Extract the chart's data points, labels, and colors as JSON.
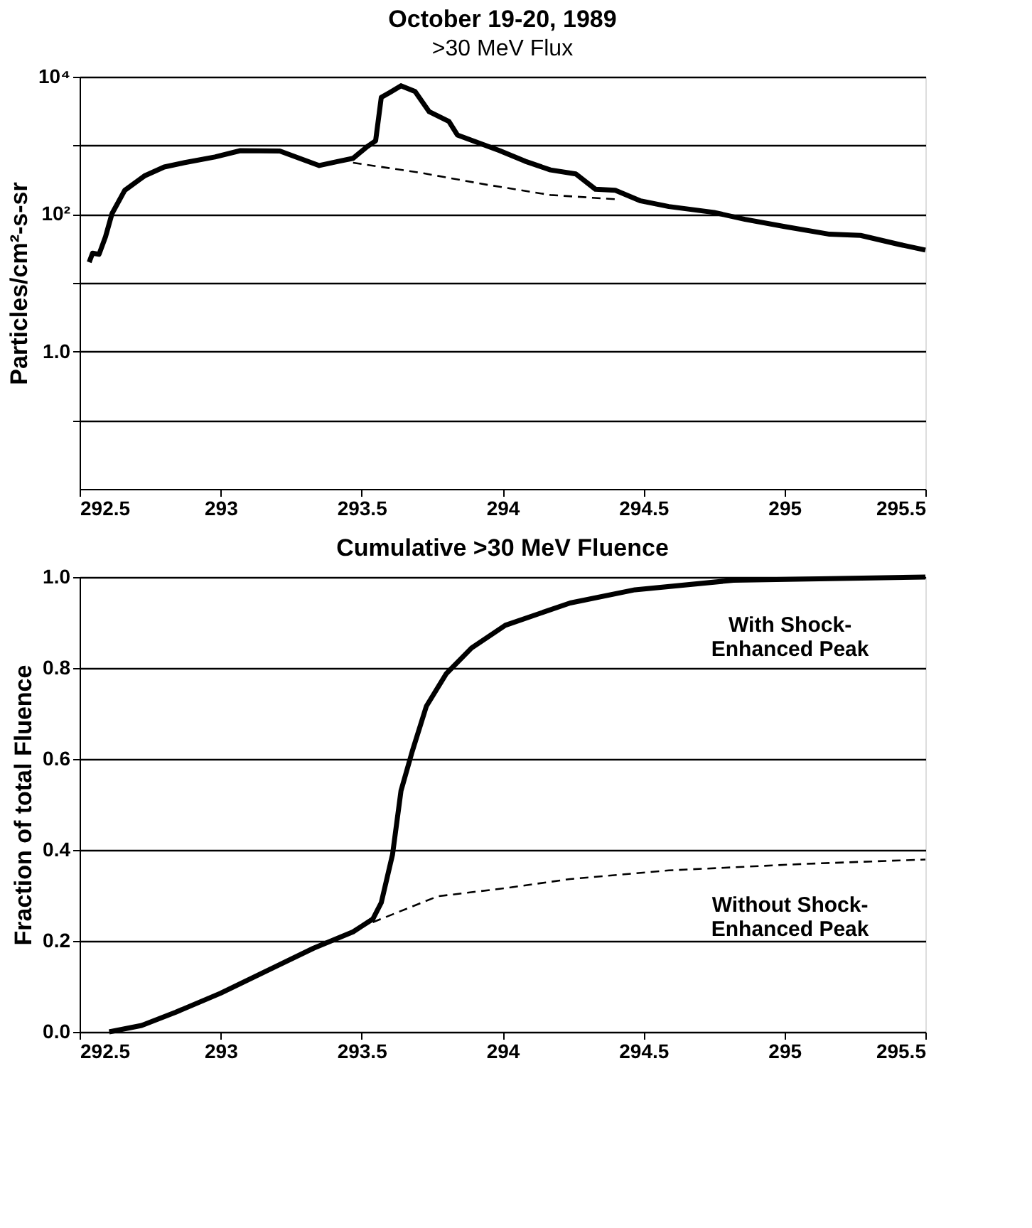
{
  "chart_data": [
    {
      "type": "line",
      "title": "October 19-20, 1989",
      "subtitle": ">30 MeV Flux",
      "ylabel": "Particles/cm²-s-sr",
      "log": "y",
      "grid": "y",
      "marker": "none",
      "xlim": [
        292.5,
        295.5
      ],
      "xticks": [
        292.5,
        293,
        293.5,
        294,
        294.5,
        295,
        295.5
      ],
      "ylim": [
        0.01,
        10000
      ],
      "yticks": [
        {
          "value": 10000,
          "label": "10⁴"
        },
        {
          "value": 1000,
          "label": null
        },
        {
          "value": 100,
          "label": "10²"
        },
        {
          "value": 10,
          "label": null
        },
        {
          "value": 1,
          "label": "1.0"
        },
        {
          "value": 0.1,
          "label": null
        }
      ],
      "series": [
        {
          "color": "#000000",
          "line_style": "solid",
          "x": [
            292.534,
            292.546,
            292.569,
            292.592,
            292.615,
            292.66,
            292.73,
            292.8,
            292.87,
            292.98,
            293.07,
            293.21,
            293.28,
            293.35,
            293.42,
            293.47,
            293.52,
            293.55,
            293.57,
            293.6,
            293.64,
            293.69,
            293.74,
            293.81,
            293.84,
            293.92,
            293.99,
            294.08,
            294.17,
            294.26,
            294.33,
            294.4,
            294.49,
            294.59,
            294.75,
            294.86,
            295.0,
            295.16,
            295.27,
            295.41,
            295.5
          ],
          "values": [
            20,
            27,
            26,
            47,
            102,
            222,
            360,
            485,
            560,
            680,
            840,
            830,
            650,
            510,
            590,
            650,
            960,
            1170,
            5000,
            5900,
            7400,
            6100,
            3100,
            2240,
            1420,
            1070,
            840,
            590,
            440,
            385,
            230,
            222,
            156,
            129,
            106,
            84,
            66,
            51,
            49,
            36,
            30
          ]
        },
        {
          "color": "#000000",
          "line_style": "dashed",
          "x": [
            293.47,
            293.71,
            293.94,
            294.17,
            294.4
          ],
          "values": [
            560,
            400,
            270,
            190,
            165
          ]
        }
      ]
    },
    {
      "type": "line",
      "title": "Cumulative >30 MeV Fluence",
      "ylabel": "Fraction of total Fluence",
      "grid": "y",
      "marker": "none",
      "xlim": [
        292.5,
        295.5
      ],
      "xticks": [
        292.5,
        293,
        293.5,
        294,
        294.5,
        295,
        295.5
      ],
      "ylim": [
        0,
        1
      ],
      "yticks": [
        {
          "value": 0,
          "label": "0.0"
        },
        0.2,
        0.4,
        0.6,
        0.8,
        {
          "value": 1,
          "label": "1.0"
        }
      ],
      "series": [
        {
          "color": "#000000",
          "line_style": "solid",
          "x": [
            292.605,
            292.72,
            292.84,
            293.0,
            293.19,
            293.33,
            293.47,
            293.54,
            293.57,
            293.61,
            293.64,
            293.68,
            293.73,
            293.8,
            293.89,
            294.01,
            294.24,
            294.47,
            294.82,
            295.5
          ],
          "values": [
            0,
            0.014,
            0.043,
            0.085,
            0.142,
            0.184,
            0.22,
            0.248,
            0.284,
            0.39,
            0.53,
            0.617,
            0.716,
            0.787,
            0.844,
            0.894,
            0.943,
            0.972,
            0.993,
            1.0
          ]
        },
        {
          "color": "#000000",
          "line_style": "dashed",
          "x": [
            293.54,
            293.77,
            294.01,
            294.24,
            294.59,
            295.06,
            295.5
          ],
          "values": [
            0.241,
            0.298,
            0.316,
            0.336,
            0.355,
            0.369,
            0.379
          ]
        }
      ],
      "annotations": [
        "With Shock-\nEnhanced Peak",
        "Without Shock-\nEnhanced Peak"
      ]
    }
  ]
}
